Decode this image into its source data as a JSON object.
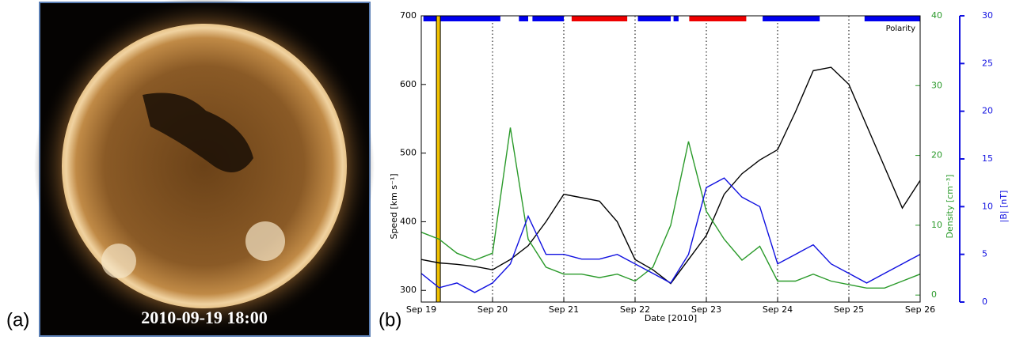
{
  "image_panel": {
    "label": "(a)",
    "caption": "2010-09-19 18:00"
  },
  "chart_data": {
    "type": "line",
    "label": "(b)",
    "xlabel": "Date [2010]",
    "ylabel": "Speed [km s⁻¹]",
    "y2label": "Density [cm⁻³]",
    "y3label": "|B| [nT]",
    "x": [
      19,
      19.25,
      19.5,
      19.75,
      20,
      20.25,
      20.5,
      20.75,
      21,
      21.25,
      21.5,
      21.75,
      22,
      22.25,
      22.5,
      22.75,
      23,
      23.25,
      23.5,
      23.75,
      24,
      24.25,
      24.5,
      24.75,
      25,
      25.25,
      25.5,
      25.75,
      26
    ],
    "xlim": [
      19,
      26
    ],
    "xticks": [
      {
        "value": 19,
        "label": "Sep 19"
      },
      {
        "value": 20,
        "label": "Sep 20"
      },
      {
        "value": 21,
        "label": "Sep 21"
      },
      {
        "value": 22,
        "label": "Sep 22"
      },
      {
        "value": 23,
        "label": "Sep 23"
      },
      {
        "value": 24,
        "label": "Sep 24"
      },
      {
        "value": 25,
        "label": "Sep 25"
      },
      {
        "value": 26,
        "label": "Sep 26"
      }
    ],
    "xgrid": true,
    "ylim": [
      283,
      700
    ],
    "yticks": [
      300,
      400,
      500,
      600,
      700
    ],
    "y2lim": [
      -1,
      40
    ],
    "y2ticks": [
      0,
      10,
      20,
      30,
      40
    ],
    "y3lim": [
      0,
      30
    ],
    "y3ticks": [
      0,
      5,
      10,
      15,
      20,
      25,
      30
    ],
    "series": [
      {
        "color": "#000000",
        "axis": "y",
        "values": [
          345,
          340,
          338,
          335,
          330,
          345,
          365,
          400,
          440,
          435,
          430,
          400,
          345,
          330,
          310,
          345,
          380,
          440,
          470,
          490,
          505,
          560,
          620,
          625,
          600,
          540,
          480,
          420,
          460
        ]
      },
      {
        "color": "#2a9a2a",
        "axis": "y2",
        "values": [
          9,
          8,
          6,
          5,
          6,
          24,
          8,
          4,
          3,
          3,
          2.5,
          3,
          2,
          4,
          10,
          22,
          12,
          8,
          5,
          7,
          2,
          2,
          3,
          2,
          1.5,
          1,
          1,
          2,
          3
        ]
      },
      {
        "color": "#1010e0",
        "axis": "y3",
        "values": [
          3,
          1.5,
          2,
          1,
          2,
          4,
          9,
          5,
          5,
          4.5,
          4.5,
          5,
          4,
          3,
          2,
          5,
          12,
          13,
          11,
          10,
          4,
          5,
          6,
          4,
          3,
          2,
          3,
          4,
          5
        ]
      }
    ],
    "highlight_time": 19.24,
    "highlight_color": "#f0c000",
    "polarity": {
      "label": "Polarity",
      "segments": [
        {
          "start": 19.03,
          "end": 20.11,
          "color": "#0000ee"
        },
        {
          "start": 20.37,
          "end": 20.5,
          "color": "#0000ee"
        },
        {
          "start": 20.56,
          "end": 21.0,
          "color": "#0000ee"
        },
        {
          "start": 21.11,
          "end": 21.89,
          "color": "#ee0000"
        },
        {
          "start": 22.04,
          "end": 22.5,
          "color": "#0000ee"
        },
        {
          "start": 22.54,
          "end": 22.61,
          "color": "#0000ee"
        },
        {
          "start": 22.76,
          "end": 23.56,
          "color": "#ee0000"
        },
        {
          "start": 23.79,
          "end": 24.59,
          "color": "#0000ee"
        },
        {
          "start": 25.22,
          "end": 26,
          "color": "#0000ee"
        }
      ]
    }
  }
}
